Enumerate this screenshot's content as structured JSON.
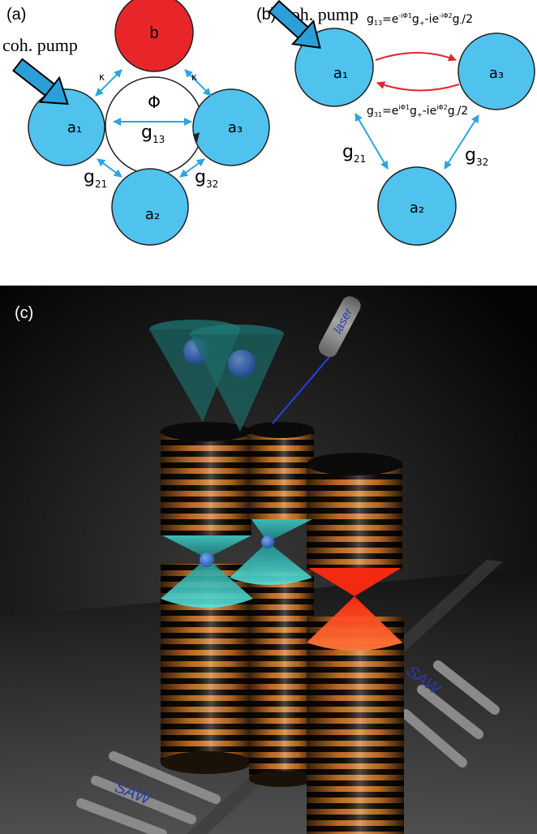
{
  "panel_a": {
    "label": "(a)",
    "pump_label": "coh. pump",
    "mode_b": "b",
    "mode_a1": "a₁",
    "mode_a2": "a₂",
    "mode_a3": "a₃",
    "phase": "Φ",
    "kappa_left": "κ",
    "kappa_right": "κ",
    "g13": "13",
    "g21": "21",
    "g32": "32",
    "g_letter": "g"
  },
  "panel_b": {
    "label": "(b)",
    "pump_label": "coh. pump",
    "mode_a1": "a₁",
    "mode_a2": "a₂",
    "mode_a3": "a₃",
    "g13_expr": "=e",
    "g13_sub": "13",
    "g31_sub": "31",
    "phi1_sup": "-iΦ1",
    "phi2_sup": "-iΦ2",
    "phi1_sup_b": "iΦ1",
    "phi2_sup_b": "iΦ2",
    "gp": "g",
    "plus": "+",
    "minus": "-",
    "mid_term": "-ie",
    "tail": "/2",
    "g21": "21",
    "g32": "32",
    "g_letter": "g"
  },
  "panel_c": {
    "label": "(c)",
    "laser_label": "laser",
    "saw_left": "SAW",
    "saw_right": "SAW"
  },
  "colors": {
    "mode_blue": "#4fc3ee",
    "mode_red": "#e8262a",
    "arrow_blue": "#2ba6de",
    "arrow_red": "#e3262b",
    "pump_blue": "#2a9fd8",
    "pillar_orange": "#e1862f",
    "cone_cyan": "#3fd6d2",
    "cone_red": "#ff4b1e"
  }
}
